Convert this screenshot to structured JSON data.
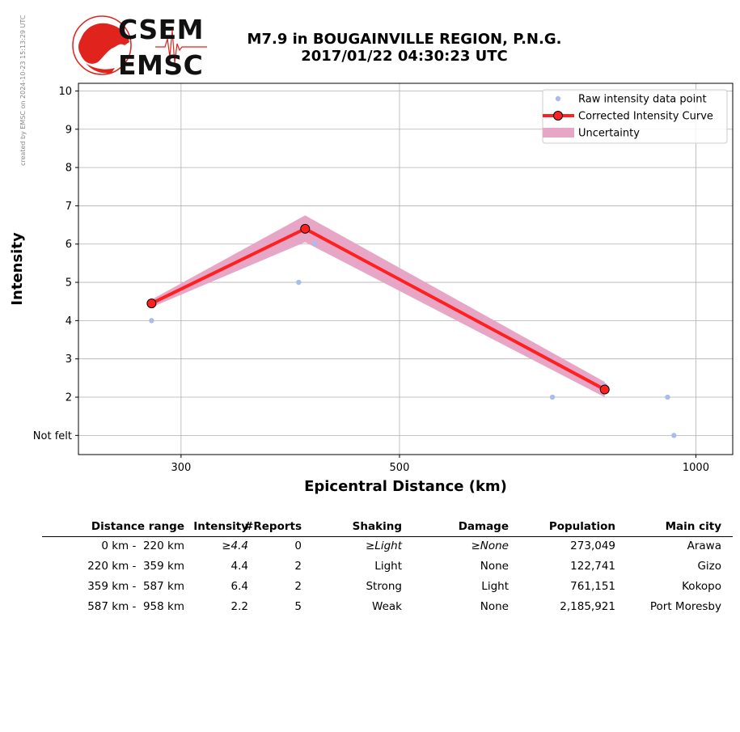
{
  "side_note": "created by EMSC on 2024-10-23 15:13:29 UTC",
  "logo": {
    "top_text": "CSEM",
    "bottom_text": "EMSC"
  },
  "title": {
    "line1": "M7.9 in BOUGAINVILLE REGION, P.N.G.",
    "line2": "2017/01/22 04:30:23 UTC"
  },
  "colors": {
    "raw": "#aabbee",
    "curve": "#ff2020",
    "marker_edge": "#000000",
    "uncertainty": "#e8a6c6",
    "grid": "#b0b0b0",
    "logo_red": "#e0231c"
  },
  "chart_data": {
    "type": "line",
    "xlabel": "Epicentral Distance (km)",
    "ylabel": "Intensity",
    "xscale": "log",
    "xlim": [
      236,
      1090
    ],
    "ylim": [
      0.5,
      10.2
    ],
    "xticks": [
      300,
      500,
      1000
    ],
    "xtick_labels": [
      "300",
      "500",
      "1000"
    ],
    "yticks": [
      1,
      2,
      3,
      4,
      5,
      6,
      7,
      8,
      9,
      10
    ],
    "ytick_labels": [
      "Not felt",
      "2",
      "3",
      "4",
      "5",
      "6",
      "7",
      "8",
      "9",
      "10"
    ],
    "grid": true,
    "legend_position": "top-right",
    "legend": [
      "Raw intensity data point",
      "Corrected Intensity Curve",
      "Uncertainty"
    ],
    "raw_points": [
      {
        "x": 280,
        "y": 4
      },
      {
        "x": 395,
        "y": 5
      },
      {
        "x": 410,
        "y": 6
      },
      {
        "x": 710,
        "y": 3
      },
      {
        "x": 715,
        "y": 2
      },
      {
        "x": 808,
        "y": 2.3
      },
      {
        "x": 936,
        "y": 2
      },
      {
        "x": 950,
        "y": 1
      }
    ],
    "curve": [
      {
        "x": 280,
        "y": 4.45
      },
      {
        "x": 401,
        "y": 6.4
      },
      {
        "x": 808,
        "y": 2.2
      }
    ],
    "uncertainty": {
      "x": [
        280,
        401,
        808
      ],
      "upper": [
        4.55,
        6.75,
        2.4
      ],
      "lower": [
        4.35,
        6.05,
        2.0
      ]
    }
  },
  "table": {
    "headers": [
      "Distance range",
      "Intensity",
      "#Reports",
      "Shaking",
      "Damage",
      "Population",
      "Main city"
    ],
    "rows": [
      {
        "range": "  0 km -  220 km",
        "intensity": "≥4.4",
        "reports": "0",
        "shaking": "≥Light",
        "damage": "≥None",
        "population": "273,049",
        "city": "Arawa"
      },
      {
        "range": "220 km -  359 km",
        "intensity": "4.4",
        "reports": "2",
        "shaking": "Light",
        "damage": "None",
        "population": "122,741",
        "city": "Gizo"
      },
      {
        "range": "359 km -  587 km",
        "intensity": "6.4",
        "reports": "2",
        "shaking": "Strong",
        "damage": "Light",
        "population": "761,151",
        "city": "Kokopo"
      },
      {
        "range": "587 km -  958 km",
        "intensity": "2.2",
        "reports": "5",
        "shaking": "Weak",
        "damage": "None",
        "population": "2,185,921",
        "city": "Port Moresby"
      }
    ]
  }
}
